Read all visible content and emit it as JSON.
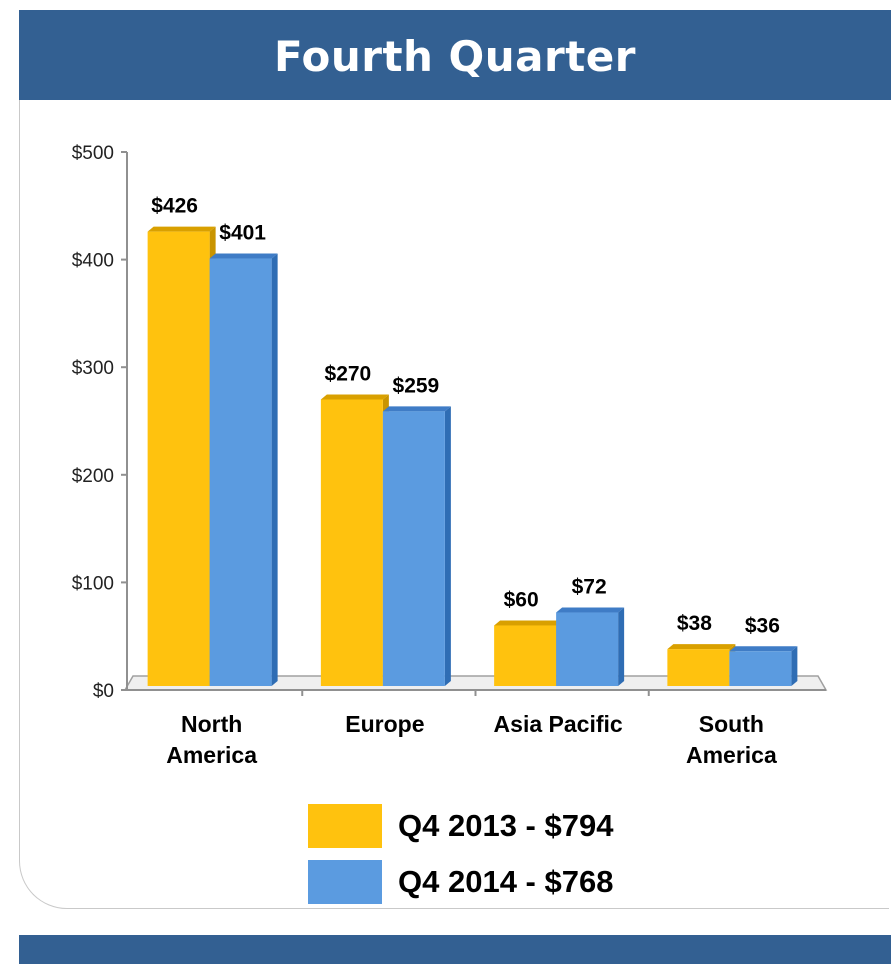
{
  "header": {
    "title": "Fourth Quarter"
  },
  "colors": {
    "header_bg": "#336092",
    "series_2013": "#FFC20E",
    "series_2014": "#5B9BE0"
  },
  "chart_data": {
    "type": "bar",
    "categories": [
      [
        "North",
        "America"
      ],
      [
        "Europe"
      ],
      [
        "Asia Pacific"
      ],
      [
        "South",
        "America"
      ]
    ],
    "series": [
      {
        "name": "Q4 2013 - $794",
        "values": [
          426,
          270,
          60,
          38
        ],
        "labels": [
          "$426",
          "$270",
          "$60",
          "$38"
        ]
      },
      {
        "name": "Q4 2014 - $768",
        "values": [
          401,
          259,
          72,
          36
        ],
        "labels": [
          "$401",
          "$259",
          "$72",
          "$36"
        ]
      }
    ],
    "yticks": [
      "$0",
      "$100",
      "$200",
      "$300",
      "$400",
      "$500"
    ],
    "ytick_values": [
      0,
      100,
      200,
      300,
      400,
      500
    ],
    "ylim": [
      0,
      500
    ],
    "legend": "bottom"
  }
}
